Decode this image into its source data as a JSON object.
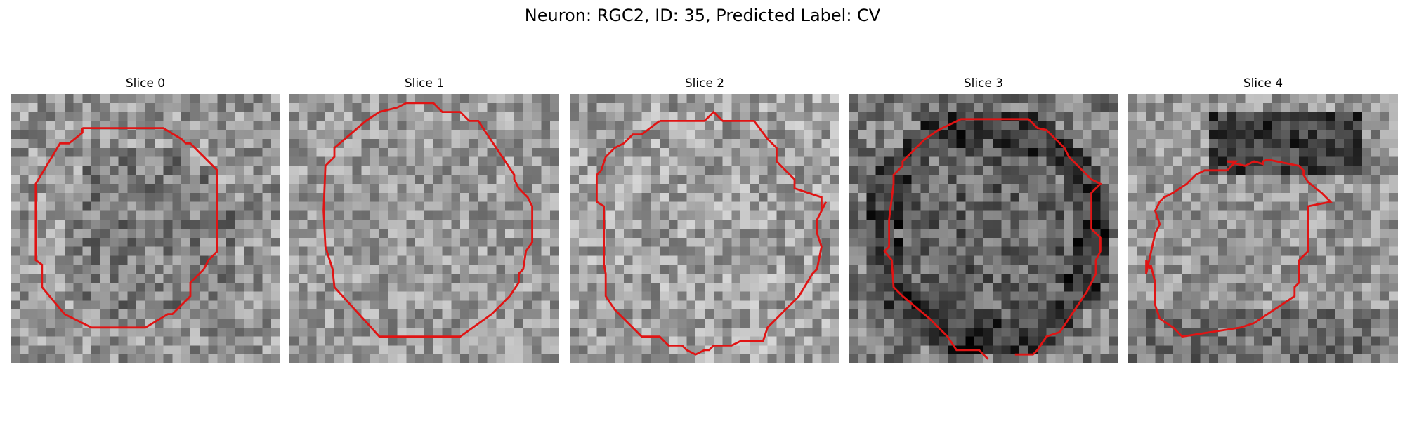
{
  "figure": {
    "title": "Neuron: RGC2, ID: 35, Predicted Label: CV"
  },
  "slices": [
    {
      "title": "Slice 0",
      "seed": 11,
      "base": 150,
      "contrast": 55,
      "shade": "mid"
    },
    {
      "title": "Slice 1",
      "seed": 23,
      "base": 155,
      "contrast": 50,
      "shade": "light"
    },
    {
      "title": "Slice 2",
      "seed": 37,
      "base": 160,
      "contrast": 55,
      "shade": "light"
    },
    {
      "title": "Slice 3",
      "seed": 49,
      "base": 125,
      "contrast": 55,
      "shade": "dark-ring"
    },
    {
      "title": "Slice 4",
      "seed": 61,
      "base": 150,
      "contrast": 50,
      "shade": "dark-top"
    }
  ],
  "style": {
    "contour_color": "#e01414",
    "colormap": "gray"
  }
}
